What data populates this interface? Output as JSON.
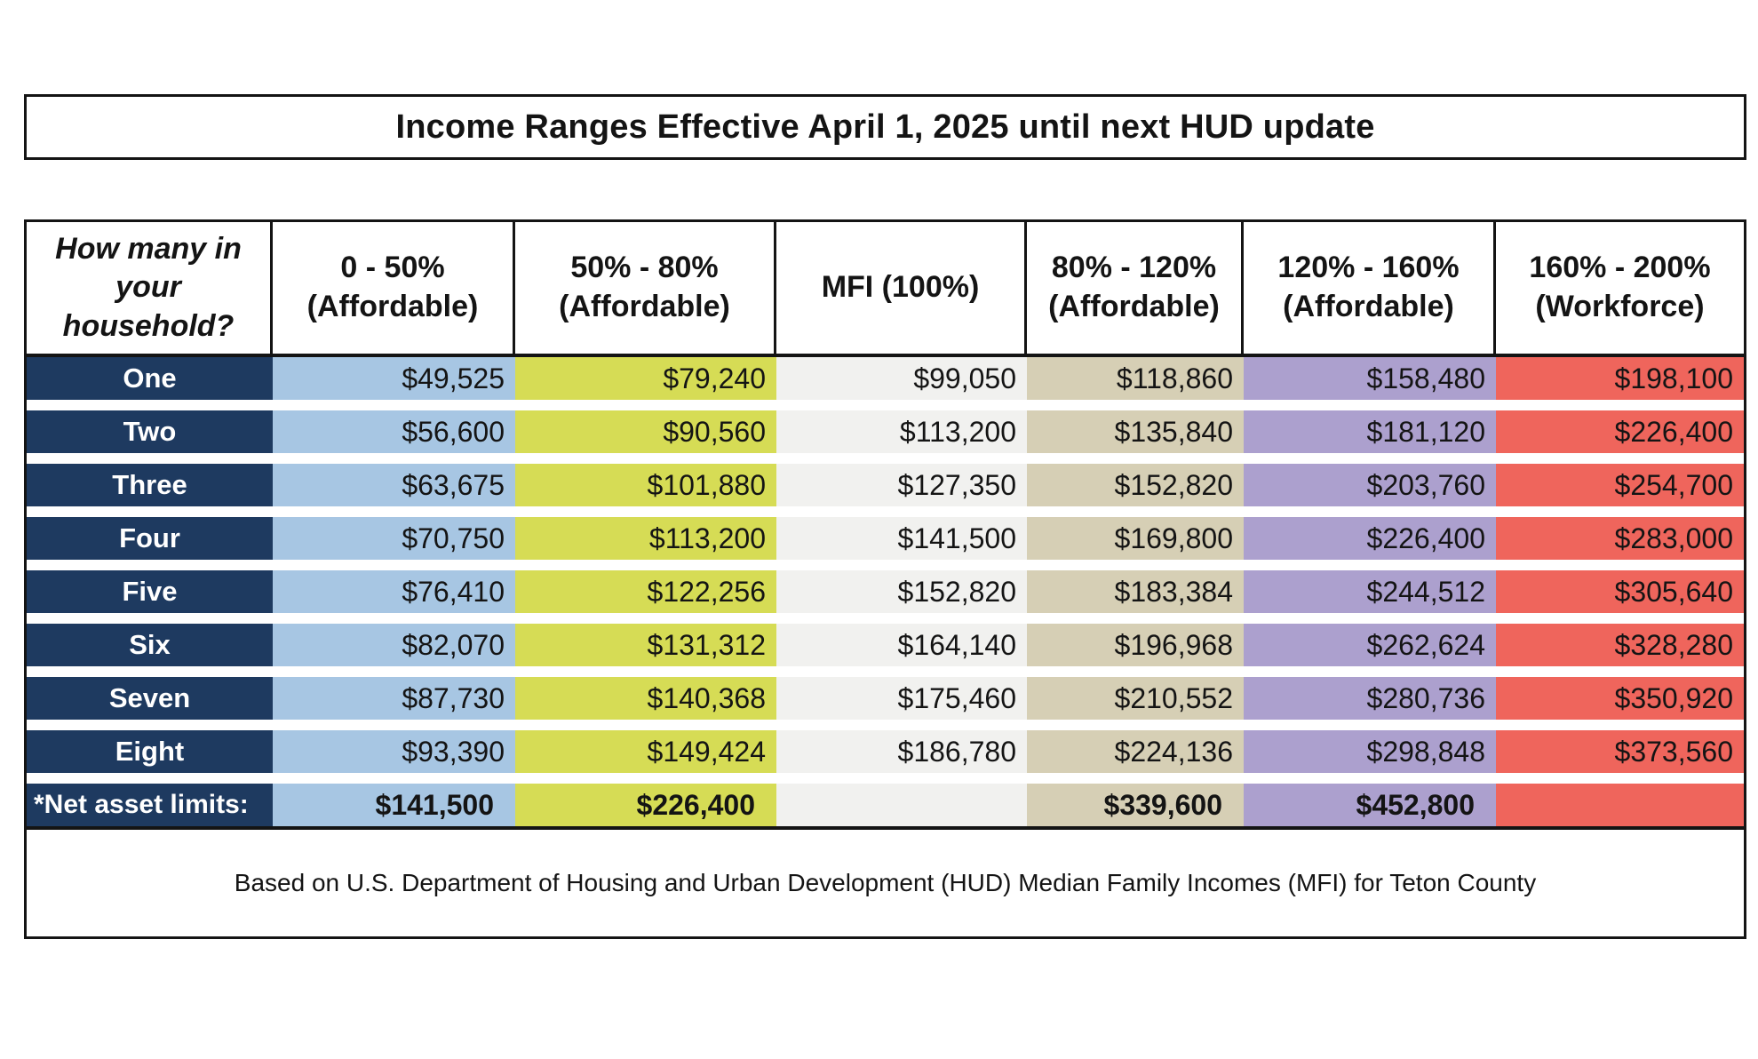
{
  "title": "Income Ranges Effective April 1, 2025 until next HUD update",
  "footnote": "Based on U.S. Department of Housing and Urban Development (HUD) Median Family Incomes (MFI) for Teton County",
  "colors": {
    "label_navy": "#1e3a60",
    "border_black": "#141414",
    "col_blue": "#a7c6e3",
    "col_green": "#d6dc55",
    "col_mfi": "#f1f1ef",
    "col_tan": "#d6cfb5",
    "col_purple": "#aca0ce",
    "col_red": "#ef655c"
  },
  "table": {
    "row_header": "How many in your household?",
    "columns": [
      {
        "range": "0 - 50%",
        "tier": "(Affordable)",
        "color": "#a7c6e3"
      },
      {
        "range": "50% - 80%",
        "tier": "(Affordable)",
        "color": "#d6dc55"
      },
      {
        "range": "MFI (100%)",
        "tier": "",
        "color": "#f1f1ef"
      },
      {
        "range": "80% - 120%",
        "tier": "(Affordable)",
        "color": "#d6cfb5"
      },
      {
        "range": "120% - 160%",
        "tier": "(Affordable)",
        "color": "#aca0ce"
      },
      {
        "range": "160% - 200%",
        "tier": "(Workforce)",
        "color": "#ef655c"
      }
    ],
    "rows": [
      {
        "label": "One",
        "values": [
          "$49,525",
          "$79,240",
          "$99,050",
          "$118,860",
          "$158,480",
          "$198,100"
        ]
      },
      {
        "label": "Two",
        "values": [
          "$56,600",
          "$90,560",
          "$113,200",
          "$135,840",
          "$181,120",
          "$226,400"
        ]
      },
      {
        "label": "Three",
        "values": [
          "$63,675",
          "$101,880",
          "$127,350",
          "$152,820",
          "$203,760",
          "$254,700"
        ]
      },
      {
        "label": "Four",
        "values": [
          "$70,750",
          "$113,200",
          "$141,500",
          "$169,800",
          "$226,400",
          "$283,000"
        ]
      },
      {
        "label": "Five",
        "values": [
          "$76,410",
          "$122,256",
          "$152,820",
          "$183,384",
          "$244,512",
          "$305,640"
        ]
      },
      {
        "label": "Six",
        "values": [
          "$82,070",
          "$131,312",
          "$164,140",
          "$196,968",
          "$262,624",
          "$328,280"
        ]
      },
      {
        "label": "Seven",
        "values": [
          "$87,730",
          "$140,368",
          "$175,460",
          "$210,552",
          "$280,736",
          "$350,920"
        ]
      },
      {
        "label": "Eight",
        "values": [
          "$93,390",
          "$149,424",
          "$186,780",
          "$224,136",
          "$298,848",
          "$373,560"
        ]
      },
      {
        "label": "*Net asset limits:",
        "net": true,
        "values": [
          "$141,500",
          "$226,400",
          "",
          "$339,600",
          "$452,800",
          ""
        ]
      }
    ]
  }
}
